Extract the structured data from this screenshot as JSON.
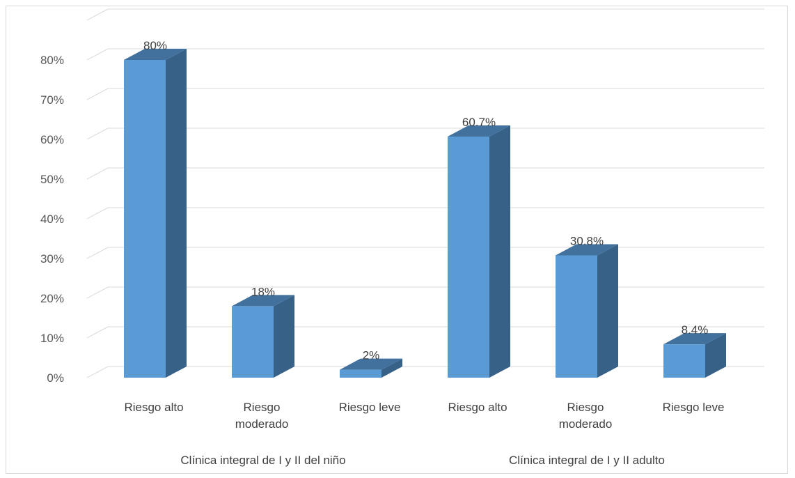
{
  "chart_data": {
    "type": "bar",
    "title": "",
    "xlabel": "",
    "ylabel": "",
    "ylim": [
      0,
      80
    ],
    "ytick_step": 10,
    "ytick_suffix": "%",
    "grid": true,
    "legend": "none",
    "three_d": true,
    "categories": [
      "Riesgo alto",
      "Riesgo moderado",
      "Riesgo leve",
      "Riesgo alto",
      "Riesgo moderado",
      "Riesgo leve"
    ],
    "category_lines": [
      [
        "Riesgo alto"
      ],
      [
        "Riesgo",
        "moderado"
      ],
      [
        "Riesgo leve"
      ],
      [
        "Riesgo alto"
      ],
      [
        "Riesgo",
        "moderado"
      ],
      [
        "Riesgo leve"
      ]
    ],
    "groups": [
      {
        "label": "Clínica integral de I y II del niño",
        "span": [
          0,
          2
        ]
      },
      {
        "label": "Clínica integral de I y II adulto",
        "span": [
          3,
          5
        ]
      }
    ],
    "values": [
      80,
      18,
      2,
      60.7,
      30.8,
      8.4
    ],
    "data_labels": [
      "80%",
      "18%",
      "2%",
      "60.7%",
      "30.8%",
      "8.4%"
    ],
    "colors": {
      "front": "#5b9bd5",
      "side": "#386188",
      "top": "#41719c",
      "grid": "#d9d9d9"
    }
  }
}
